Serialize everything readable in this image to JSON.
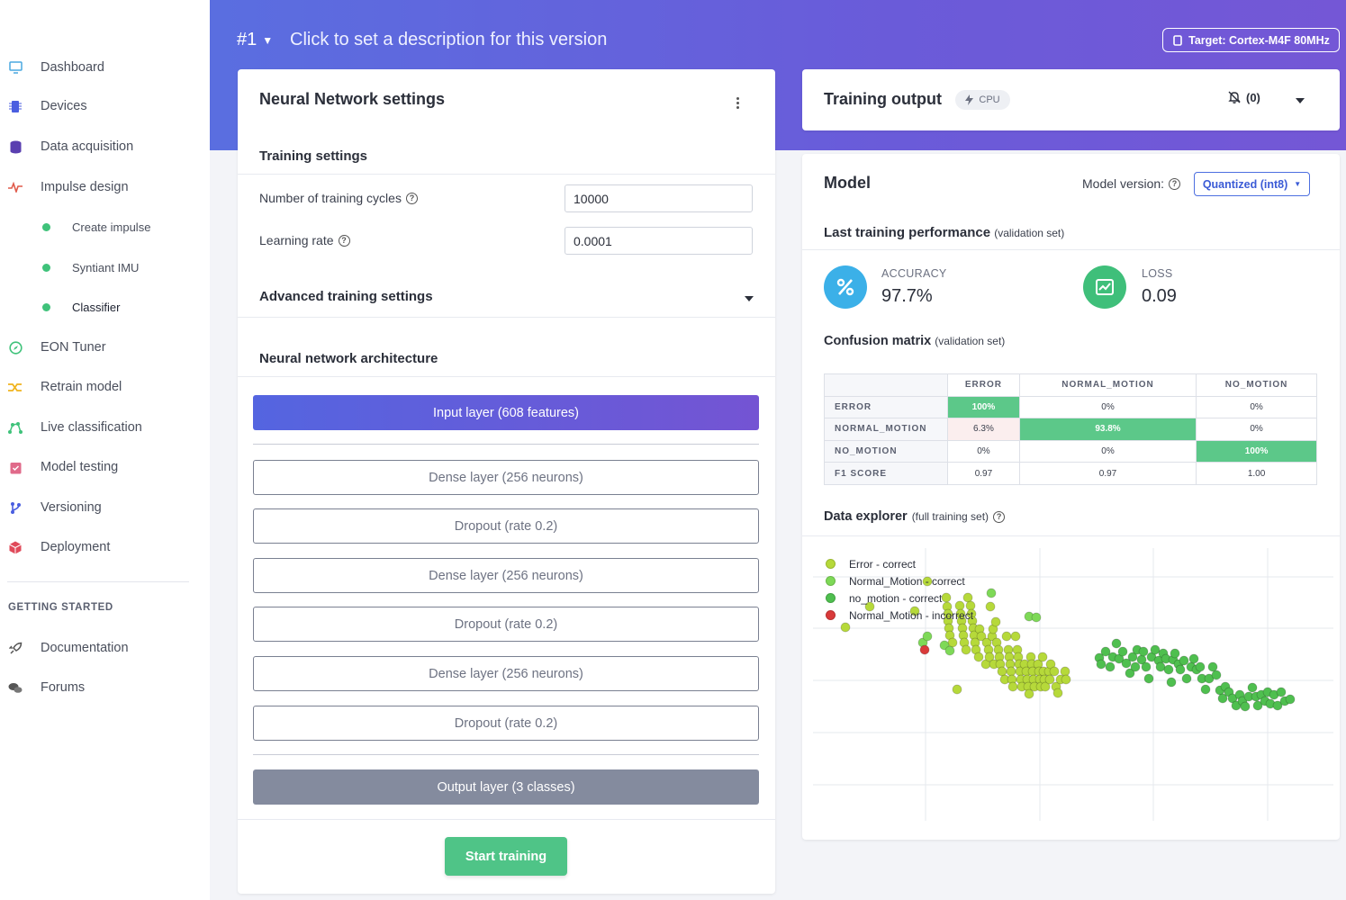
{
  "sidebar": {
    "items": [
      {
        "label": "Dashboard",
        "icon": "monitor-icon",
        "color": "#4aa8e0"
      },
      {
        "label": "Devices",
        "icon": "chip-icon",
        "color": "#4a5ee0"
      },
      {
        "label": "Data acquisition",
        "icon": "database-icon",
        "color": "#5a3fb0"
      },
      {
        "label": "Impulse design",
        "icon": "pulse-icon",
        "color": "#e05a4a"
      },
      {
        "label": "EON Tuner",
        "icon": "compass-icon",
        "color": "#3fc27a"
      },
      {
        "label": "Retrain model",
        "icon": "shuffle-icon",
        "color": "#f0b41e"
      },
      {
        "label": "Live classification",
        "icon": "graph-icon",
        "color": "#3fc27a"
      },
      {
        "label": "Model testing",
        "icon": "clipboard-icon",
        "color": "#e06a8a"
      },
      {
        "label": "Versioning",
        "icon": "branch-icon",
        "color": "#4a5ee0"
      },
      {
        "label": "Deployment",
        "icon": "box-icon",
        "color": "#e04a5a"
      }
    ],
    "sub_items": [
      "Create impulse",
      "Syntiant IMU",
      "Classifier"
    ],
    "section_title": "GETTING STARTED",
    "getting_started": [
      {
        "label": "Documentation",
        "icon": "rocket-icon"
      },
      {
        "label": "Forums",
        "icon": "chat-icon"
      }
    ]
  },
  "header": {
    "version": "#1",
    "description": "Click to set a description for this version",
    "target": "Target: Cortex-M4F 80MHz"
  },
  "nn_settings": {
    "title": "Neural Network settings",
    "training_settings": "Training settings",
    "cycles_label": "Number of training cycles",
    "cycles_value": "10000",
    "lr_label": "Learning rate",
    "lr_value": "0.0001",
    "advanced": "Advanced training settings",
    "architecture": "Neural network architecture",
    "input_layer": "Input layer (608 features)",
    "layers": [
      "Dense layer (256 neurons)",
      "Dropout (rate 0.2)",
      "Dense layer (256 neurons)",
      "Dropout (rate 0.2)",
      "Dense layer (256 neurons)",
      "Dropout (rate 0.2)"
    ],
    "output_layer": "Output layer (3 classes)",
    "start_button": "Start training"
  },
  "training_output": {
    "title": "Training output",
    "cpu": "CPU",
    "notifications": "(0)"
  },
  "model": {
    "title": "Model",
    "version_label": "Model version:",
    "version_value": "Quantized (int8)",
    "perf_title": "Last training performance",
    "perf_note": "(validation set)",
    "accuracy_label": "ACCURACY",
    "accuracy_value": "97.7%",
    "loss_label": "LOSS",
    "loss_value": "0.09",
    "cm_title": "Confusion matrix",
    "cm_note": "(validation set)",
    "cm_columns": [
      "ERROR",
      "NORMAL_MOTION",
      "NO_MOTION"
    ],
    "cm_rows": [
      {
        "label": "ERROR",
        "cells": [
          "100%",
          "0%",
          "0%"
        ]
      },
      {
        "label": "NORMAL_MOTION",
        "cells": [
          "6.3%",
          "93.8%",
          "0%"
        ]
      },
      {
        "label": "NO_MOTION",
        "cells": [
          "0%",
          "0%",
          "100%"
        ]
      },
      {
        "label": "F1 SCORE",
        "cells": [
          "0.97",
          "0.97",
          "1.00"
        ]
      }
    ],
    "explorer_title": "Data explorer",
    "explorer_note": "(full training set)",
    "legend": [
      {
        "label": "Error - correct",
        "color": "#b6d93a"
      },
      {
        "label": "Normal_Motion - correct",
        "color": "#7ed957"
      },
      {
        "label": "no_motion - correct",
        "color": "#4fbf4f"
      },
      {
        "label": "Normal_Motion - incorrect",
        "color": "#d93a3a"
      }
    ]
  },
  "chart_data": {
    "type": "scatter",
    "title": "",
    "xlabel": "",
    "ylabel": "",
    "grid": true,
    "legend_position": "top-left",
    "series": [
      {
        "name": "Error - correct",
        "color": "#b6d93a",
        "points": [
          [
            36,
            93
          ],
          [
            63,
            70
          ],
          [
            113,
            75
          ],
          [
            127,
            42
          ],
          [
            148,
            60
          ],
          [
            149,
            70
          ],
          [
            150,
            78
          ],
          [
            150,
            86
          ],
          [
            151,
            94
          ],
          [
            152,
            102
          ],
          [
            155,
            110
          ],
          [
            160,
            162
          ],
          [
            163,
            69
          ],
          [
            164,
            78
          ],
          [
            165,
            86
          ],
          [
            166,
            94
          ],
          [
            167,
            102
          ],
          [
            168,
            110
          ],
          [
            170,
            118
          ],
          [
            172,
            60
          ],
          [
            175,
            69
          ],
          [
            176,
            78
          ],
          [
            177,
            86
          ],
          [
            178,
            94
          ],
          [
            179,
            102
          ],
          [
            180,
            110
          ],
          [
            181,
            118
          ],
          [
            184,
            126
          ],
          [
            185,
            95
          ],
          [
            187,
            103
          ],
          [
            192,
            134
          ],
          [
            193,
            110
          ],
          [
            195,
            118
          ],
          [
            196,
            126
          ],
          [
            197,
            70
          ],
          [
            199,
            103
          ],
          [
            200,
            95
          ],
          [
            201,
            134
          ],
          [
            203,
            87
          ],
          [
            204,
            110
          ],
          [
            206,
            118
          ],
          [
            207,
            126
          ],
          [
            208,
            134
          ],
          [
            210,
            142
          ],
          [
            213,
            151
          ],
          [
            215,
            103
          ],
          [
            217,
            118
          ],
          [
            218,
            126
          ],
          [
            219,
            134
          ],
          [
            220,
            142
          ],
          [
            221,
            151
          ],
          [
            222,
            159
          ],
          [
            225,
            103
          ],
          [
            227,
            118
          ],
          [
            228,
            126
          ],
          [
            229,
            134
          ],
          [
            230,
            142
          ],
          [
            231,
            151
          ],
          [
            232,
            159
          ],
          [
            235,
            134
          ],
          [
            237,
            142
          ],
          [
            238,
            151
          ],
          [
            239,
            159
          ],
          [
            240,
            167
          ],
          [
            242,
            126
          ],
          [
            243,
            134
          ],
          [
            244,
            142
          ],
          [
            245,
            151
          ],
          [
            246,
            159
          ],
          [
            250,
            134
          ],
          [
            251,
            142
          ],
          [
            252,
            151
          ],
          [
            253,
            159
          ],
          [
            255,
            126
          ],
          [
            256,
            142
          ],
          [
            257,
            151
          ],
          [
            258,
            159
          ],
          [
            262,
            142
          ],
          [
            263,
            151
          ],
          [
            264,
            134
          ],
          [
            268,
            142
          ],
          [
            270,
            159
          ],
          [
            272,
            166
          ],
          [
            275,
            151
          ],
          [
            280,
            142
          ],
          [
            281,
            151
          ]
        ]
      },
      {
        "name": "Normal_Motion - correct",
        "color": "#7ed957",
        "points": [
          [
            122,
            110
          ],
          [
            127,
            103
          ],
          [
            146,
            113
          ],
          [
            152,
            119
          ],
          [
            198,
            55
          ],
          [
            240,
            81
          ],
          [
            248,
            82
          ]
        ]
      },
      {
        "name": "no_motion - correct",
        "color": "#4fbf4f",
        "points": [
          [
            318,
            127
          ],
          [
            320,
            134
          ],
          [
            325,
            120
          ],
          [
            330,
            137
          ],
          [
            333,
            126
          ],
          [
            337,
            111
          ],
          [
            340,
            128
          ],
          [
            344,
            120
          ],
          [
            348,
            133
          ],
          [
            352,
            144
          ],
          [
            355,
            126
          ],
          [
            358,
            137
          ],
          [
            360,
            118
          ],
          [
            365,
            129
          ],
          [
            367,
            120
          ],
          [
            370,
            137
          ],
          [
            373,
            150
          ],
          [
            376,
            126
          ],
          [
            380,
            118
          ],
          [
            384,
            130
          ],
          [
            386,
            137
          ],
          [
            389,
            122
          ],
          [
            392,
            128
          ],
          [
            395,
            140
          ],
          [
            398,
            154
          ],
          [
            400,
            129
          ],
          [
            402,
            122
          ],
          [
            406,
            134
          ],
          [
            408,
            140
          ],
          [
            412,
            130
          ],
          [
            415,
            150
          ],
          [
            420,
            137
          ],
          [
            423,
            128
          ],
          [
            426,
            140
          ],
          [
            430,
            137
          ],
          [
            432,
            150
          ],
          [
            436,
            162
          ],
          [
            440,
            150
          ],
          [
            444,
            137
          ],
          [
            448,
            146
          ],
          [
            452,
            163
          ],
          [
            455,
            172
          ],
          [
            458,
            159
          ],
          [
            462,
            165
          ],
          [
            466,
            172
          ],
          [
            470,
            180
          ],
          [
            474,
            168
          ],
          [
            477,
            175
          ],
          [
            480,
            181
          ],
          [
            484,
            170
          ],
          [
            488,
            160
          ],
          [
            492,
            170
          ],
          [
            494,
            180
          ],
          [
            498,
            168
          ],
          [
            502,
            175
          ],
          [
            505,
            165
          ],
          [
            508,
            178
          ],
          [
            512,
            168
          ],
          [
            516,
            180
          ],
          [
            520,
            165
          ],
          [
            524,
            175
          ],
          [
            530,
            173
          ]
        ]
      },
      {
        "name": "Normal_Motion - incorrect",
        "color": "#d93a3a",
        "points": [
          [
            124,
            118
          ]
        ]
      }
    ]
  }
}
